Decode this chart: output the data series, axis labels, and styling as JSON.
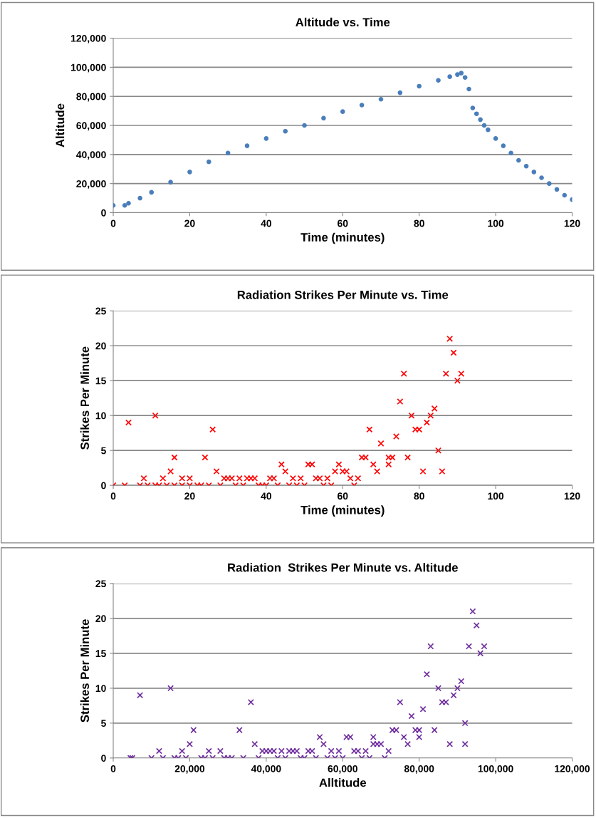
{
  "chart_data": [
    {
      "type": "scatter",
      "title": "Altitude vs. Time",
      "xlabel": "Time (minutes)",
      "ylabel": "Altitude",
      "xlim": [
        0,
        120
      ],
      "xticks": [
        0,
        20,
        40,
        60,
        80,
        100,
        120
      ],
      "ylim": [
        0,
        120000
      ],
      "yticks": [
        {
          "value": 0,
          "label": "0"
        },
        {
          "value": 20000,
          "label": "20,000"
        },
        {
          "value": 40000,
          "label": "40,000"
        },
        {
          "value": 60000,
          "label": "60,000"
        },
        {
          "value": 80000,
          "label": "80,000"
        },
        {
          "value": 100000,
          "label": "100,000"
        },
        {
          "value": 120000,
          "label": "120,000"
        }
      ],
      "grid": "y",
      "marker": "circle",
      "series": [
        {
          "color": "#4a7ebb",
          "x": [
            0,
            3,
            4,
            7,
            10,
            15,
            20,
            25,
            30,
            35,
            40,
            45,
            50,
            55,
            60,
            65,
            70,
            75,
            80,
            85,
            88,
            90,
            91,
            92,
            93,
            94,
            95,
            96,
            97,
            98,
            100,
            102,
            104,
            106,
            108,
            110,
            112,
            114,
            116,
            118,
            120
          ],
          "values": [
            5000,
            5000,
            6500,
            10000,
            14000,
            21000,
            28000,
            35000,
            41000,
            46000,
            51000,
            56000,
            60000,
            65000,
            69500,
            74000,
            78000,
            82500,
            87000,
            91000,
            93500,
            95000,
            96000,
            93000,
            85000,
            72000,
            68000,
            64000,
            60000,
            57000,
            51000,
            46000,
            41000,
            36000,
            32000,
            28000,
            24000,
            20000,
            16000,
            12000,
            9000
          ]
        }
      ]
    },
    {
      "type": "scatter",
      "title": "Radiation Strikes Per Minute vs. Time",
      "xlabel": "Time (minutes)",
      "ylabel": "Strikes Per Minute",
      "xlim": [
        0,
        120
      ],
      "xticks": [
        0,
        20,
        40,
        60,
        80,
        100,
        120
      ],
      "ylim": [
        0,
        25
      ],
      "yticks": [
        0,
        5,
        10,
        15,
        20,
        25
      ],
      "grid": "y",
      "marker": "cross",
      "series": [
        {
          "color": "#ff0000",
          "x": [
            0,
            3,
            4,
            7,
            8,
            9,
            11,
            11,
            12,
            13,
            14,
            15,
            16,
            16,
            18,
            18,
            20,
            20,
            22,
            23,
            24,
            25,
            26,
            27,
            28,
            29,
            30,
            31,
            32,
            33,
            34,
            35,
            36,
            37,
            38,
            39,
            40,
            41,
            42,
            43,
            44,
            45,
            46,
            47,
            48,
            49,
            50,
            51,
            52,
            53,
            54,
            55,
            56,
            57,
            58,
            59,
            60,
            61,
            62,
            63,
            64,
            65,
            66,
            67,
            68,
            69,
            70,
            72,
            72,
            73,
            74,
            75,
            76,
            77,
            78,
            79,
            80,
            81,
            82,
            83,
            84,
            85,
            86,
            87,
            88,
            89,
            90,
            91
          ],
          "values": [
            0,
            0,
            9,
            0,
            1,
            0,
            10,
            0,
            0,
            1,
            0,
            2,
            4,
            0,
            1,
            0,
            1,
            0,
            0,
            0,
            4,
            0,
            8,
            2,
            0,
            1,
            1,
            1,
            0,
            1,
            0,
            1,
            1,
            1,
            0,
            0,
            0,
            1,
            1,
            0,
            3,
            2,
            0,
            1,
            0,
            1,
            0,
            3,
            3,
            1,
            1,
            0,
            1,
            0,
            2,
            3,
            2,
            2,
            1,
            0,
            1,
            4,
            4,
            8,
            3,
            2,
            6,
            4,
            3,
            4,
            7,
            12,
            16,
            4,
            10,
            8,
            8,
            2,
            9,
            10,
            11,
            5,
            2,
            16,
            21,
            19,
            15,
            16
          ]
        }
      ]
    },
    {
      "type": "scatter",
      "title": "Radiation  Strikes Per Minute vs. Altitude",
      "xlabel": "Alltitude",
      "ylabel": "Strikes Per Minute",
      "xlim": [
        0,
        120000
      ],
      "xticks": [
        {
          "value": 0,
          "label": "0"
        },
        {
          "value": 20000,
          "label": "20,000"
        },
        {
          "value": 40000,
          "label": "40,000"
        },
        {
          "value": 60000,
          "label": "60,000"
        },
        {
          "value": 80000,
          "label": "80,000"
        },
        {
          "value": 100000,
          "label": "100,000"
        },
        {
          "value": 120000,
          "label": "120,000"
        }
      ],
      "ylim": [
        0,
        25
      ],
      "yticks": [
        0,
        5,
        10,
        15,
        20,
        25
      ],
      "grid": "y",
      "marker": "cross",
      "series": [
        {
          "color": "#7030a0",
          "x": [
            4500,
            5000,
            7000,
            10000,
            12000,
            13000,
            15000,
            16000,
            17000,
            18000,
            19000,
            20000,
            21000,
            23000,
            24000,
            25000,
            26000,
            28000,
            29000,
            30000,
            31000,
            33000,
            34000,
            36000,
            37000,
            38000,
            39000,
            40000,
            41000,
            42000,
            43000,
            44000,
            45000,
            46000,
            47000,
            48000,
            49000,
            50000,
            51000,
            52000,
            53000,
            54000,
            55000,
            56000,
            57000,
            58000,
            59000,
            60000,
            61000,
            62000,
            63000,
            64000,
            65000,
            66000,
            67000,
            68000,
            68000,
            69000,
            70000,
            71000,
            72000,
            73000,
            74000,
            75000,
            76000,
            77000,
            78000,
            79000,
            80000,
            80000,
            81000,
            82000,
            83000,
            84000,
            85000,
            86000,
            87000,
            88000,
            89000,
            90000,
            91000,
            92000,
            92000,
            93000,
            94000,
            95000,
            96000,
            97000
          ],
          "values": [
            0,
            0,
            9,
            0,
            1,
            0,
            10,
            0,
            0,
            1,
            0,
            2,
            4,
            0,
            0,
            1,
            0,
            1,
            0,
            0,
            0,
            4,
            0,
            8,
            2,
            0,
            1,
            1,
            1,
            1,
            0,
            1,
            0,
            1,
            1,
            1,
            0,
            0,
            1,
            1,
            0,
            3,
            2,
            0,
            1,
            0,
            1,
            0,
            3,
            3,
            1,
            1,
            0,
            1,
            0,
            2,
            3,
            2,
            2,
            0,
            1,
            4,
            4,
            8,
            3,
            2,
            6,
            4,
            3,
            4,
            7,
            12,
            16,
            4,
            10,
            8,
            8,
            2,
            9,
            10,
            11,
            5,
            2,
            16,
            21,
            19,
            15,
            16
          ]
        }
      ]
    }
  ]
}
